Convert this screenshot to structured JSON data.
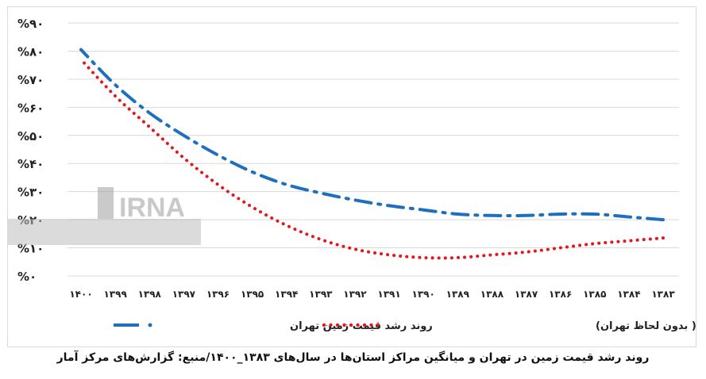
{
  "caption": "روند رشد قیمت زمین در تهران و میانگین مراکز استان‌ها در سال‌های ۱۳۸۳_۱۴۰۰/منبع: گزارش‌های مرکز آمار",
  "watermark": "IRNA",
  "chart_data": {
    "type": "line",
    "title": "",
    "xlabel": "",
    "ylabel": "",
    "categories": [
      "۱۳۸۳",
      "۱۳۸۴",
      "۱۳۸۵",
      "۱۳۸۶",
      "۱۳۸۷",
      "۱۳۸۸",
      "۱۳۸۹",
      "۱۳۹۰",
      "۱۳۹۱",
      "۱۳۹۲",
      "۱۳۹۳",
      "۱۳۹۴",
      "۱۳۹۵",
      "۱۳۹۶",
      "۱۳۹۷",
      "۱۳۹۸",
      "۱۳۹۹",
      "۱۴۰۰"
    ],
    "yticks": [
      {
        "value": 0,
        "label": "%۰"
      },
      {
        "value": 10,
        "label": "%۱۰"
      },
      {
        "value": 20,
        "label": "%۲۰"
      },
      {
        "value": 30,
        "label": "%۳۰"
      },
      {
        "value": 40,
        "label": "%۴۰"
      },
      {
        "value": 50,
        "label": "%۵۰"
      },
      {
        "value": 60,
        "label": "%۶۰"
      },
      {
        "value": 70,
        "label": "%۷۰"
      },
      {
        "value": 80,
        "label": "%۸۰"
      },
      {
        "value": 90,
        "label": "%۹۰"
      }
    ],
    "ylim": [
      0,
      90
    ],
    "grid": true,
    "legend_position": "bottom",
    "series": [
      {
        "name": "روند رشد قیمت زمین تهران",
        "color": "#1f6fbf",
        "style": "dash-dot",
        "values": [
          20,
          21,
          22,
          22,
          21.5,
          21.5,
          22,
          23.5,
          25,
          27,
          29.5,
          32.5,
          37,
          43,
          50,
          58,
          68,
          80.5
        ]
      },
      {
        "name": "روند رشد قیمت زمین کشور ( بدون لحاظ تهران)",
        "color": "#e3181f",
        "style": "dotted",
        "values": [
          13.5,
          12.5,
          11.5,
          10,
          8.5,
          7.5,
          6.5,
          6.5,
          7.5,
          9.5,
          13,
          18,
          24.5,
          32.5,
          42,
          53,
          64,
          77
        ]
      }
    ]
  }
}
